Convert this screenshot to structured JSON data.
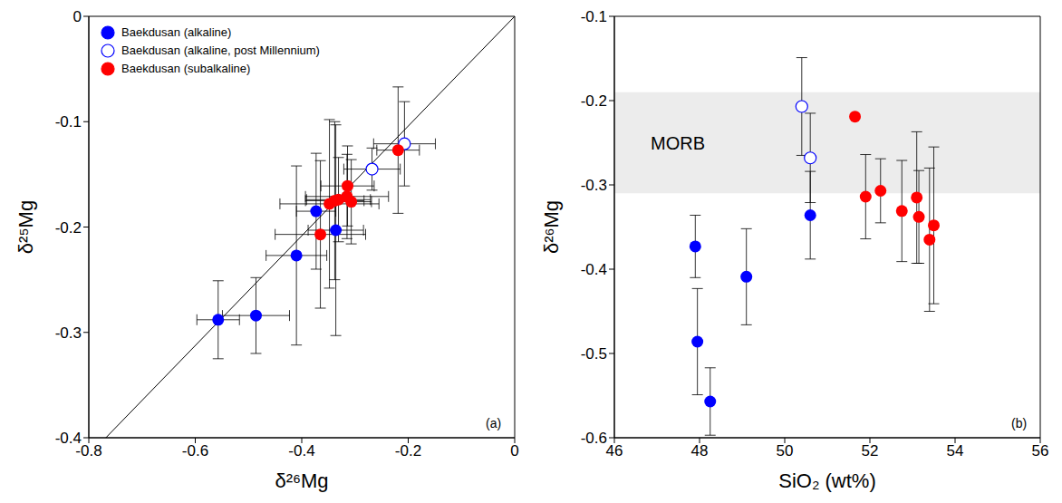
{
  "chart_data": [
    {
      "type": "scatter",
      "panel_label": "(a)",
      "x_label": "δ²⁶Mg",
      "y_label": "δ²⁵Mg",
      "xlim": [
        -0.8,
        0
      ],
      "xticks": [
        -0.8,
        -0.6,
        -0.4,
        -0.2,
        0
      ],
      "ylim": [
        -0.4,
        0
      ],
      "yticks": [
        -0.4,
        -0.3,
        -0.2,
        -0.1,
        0
      ],
      "legend": "upper left",
      "reference_line": {
        "x": [
          -0.768,
          0
        ],
        "y": [
          -0.4,
          0
        ]
      },
      "series": [
        {
          "name": "Baekdusan (alkaline)",
          "color": "#0000ff",
          "marker": "circle",
          "x": [
            -0.557,
            -0.486,
            -0.41,
            -0.373,
            -0.336
          ],
          "y": [
            -0.288,
            -0.284,
            -0.227,
            -0.185,
            -0.203
          ],
          "xerr": [
            0.04,
            0.063,
            0.057,
            0.037,
            0.052
          ],
          "yerr": [
            0.037,
            0.036,
            0.085,
            0.055,
            0.1
          ]
        },
        {
          "name": "Baekdusan (alkaline, post Millennium)",
          "color": "#0000ff",
          "marker": "open_circle",
          "x": [
            -0.268,
            -0.207
          ],
          "y": [
            -0.145,
            -0.121
          ],
          "xerr": [
            0.053,
            0.058
          ],
          "yerr": [
            0.02,
            0.04
          ]
        },
        {
          "name": "Baekdusan (subalkaline)",
          "color": "#ff0000",
          "marker": "circle",
          "x": [
            -0.219,
            -0.314,
            -0.307,
            -0.331,
            -0.315,
            -0.338,
            -0.365,
            -0.348
          ],
          "y": [
            -0.127,
            -0.161,
            -0.176,
            -0.174,
            -0.171,
            -0.175,
            -0.207,
            -0.178
          ],
          "xerr": [
            0.04,
            0.05,
            0.038,
            0.06,
            0.078,
            0.055,
            0.085,
            0.093
          ],
          "yerr": [
            0.06,
            0.038,
            0.04,
            0.04,
            0.04,
            0.075,
            0.07,
            0.08
          ]
        }
      ]
    },
    {
      "type": "scatter",
      "panel_label": "(b)",
      "x_label": "SiO₂ (wt%)",
      "y_label": "δ²⁶Mg",
      "xlim": [
        46,
        56
      ],
      "xticks": [
        46,
        48,
        50,
        52,
        54,
        56
      ],
      "ylim": [
        -0.6,
        -0.1
      ],
      "yticks": [
        -0.6,
        -0.5,
        -0.4,
        -0.3,
        -0.2,
        -0.1
      ],
      "band": {
        "label": "MORB",
        "y": [
          -0.31,
          -0.19
        ]
      },
      "series": [
        {
          "color": "#0000ff",
          "marker": "circle",
          "x": [
            47.9,
            47.95,
            48.25,
            49.1,
            50.6
          ],
          "y": [
            -0.373,
            -0.486,
            -0.557,
            -0.409,
            -0.336
          ],
          "yerr": [
            0.037,
            0.063,
            0.04,
            0.057,
            0.052
          ]
        },
        {
          "color": "#0000ff",
          "marker": "open_circle",
          "x": [
            50.4,
            50.6
          ],
          "y": [
            -0.207,
            -0.268
          ],
          "yerr": [
            0.058,
            0.053
          ]
        },
        {
          "color": "#ff0000",
          "marker": "circle",
          "x": [
            51.65,
            51.9,
            52.25,
            52.75,
            53.1,
            53.15,
            53.4,
            53.5
          ],
          "y": [
            -0.219,
            -0.314,
            -0.307,
            -0.331,
            -0.315,
            -0.338,
            -0.365,
            -0.348
          ],
          "yerr": [
            null,
            0.05,
            0.038,
            0.06,
            0.078,
            0.055,
            0.085,
            0.093
          ]
        }
      ]
    }
  ]
}
